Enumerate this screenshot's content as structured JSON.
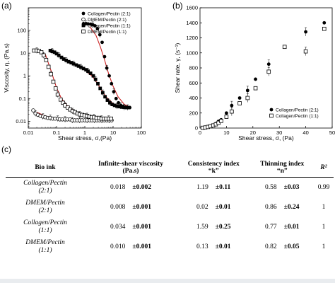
{
  "chart_data": [
    {
      "panel": "(a)",
      "type": "scatter",
      "xlabel": "Shear stress, σ,(Pa)",
      "ylabel": "Viscosity, η, (Pa.s)",
      "x_scale": "log",
      "y_scale": "log",
      "xlim": [
        0.01,
        100
      ],
      "ylim": [
        0.005,
        1000
      ],
      "x_ticks": [
        "0.01",
        "0.1",
        "1",
        "10",
        "100"
      ],
      "y_ticks": [
        "0.01",
        "0.1",
        "1",
        "10",
        "100"
      ],
      "legend_position": "top-right",
      "series": [
        {
          "name": "Collagen/Pectin (2:1)",
          "marker": "filled-circle",
          "x": [
            0.9,
            1.1,
            1.3,
            1.6,
            1.9,
            2.3,
            2.8,
            3.4,
            4.1,
            5.0,
            6.0,
            7.3,
            8.8,
            10.6,
            12.8,
            15.5,
            18.7,
            22.6,
            27.3,
            33.0,
            39.0
          ],
          "y": [
            200,
            200,
            195,
            190,
            180,
            160,
            120,
            65,
            30,
            7,
            2.2,
            1.0,
            0.45,
            0.2,
            0.1,
            0.065,
            0.05,
            0.045,
            0.042,
            0.04,
            0.04
          ]
        },
        {
          "name": "DMEM/Pectin (2:1)",
          "marker": "open-circle",
          "x": [
            0.015,
            0.018,
            0.022,
            0.027,
            0.033,
            0.04,
            0.049,
            0.06,
            0.073,
            0.089,
            0.11,
            0.13,
            0.16,
            0.2,
            0.24,
            0.3,
            0.36,
            0.44,
            0.54,
            0.66,
            0.8,
            1.0,
            1.2,
            1.5,
            1.8,
            2.2,
            2.7,
            3.3,
            4.0,
            4.9,
            6.0,
            7.3,
            8.9
          ],
          "y": [
            0.03,
            0.022,
            0.019,
            0.017,
            0.016,
            0.015,
            0.014,
            0.014,
            0.013,
            0.013,
            0.013,
            0.012,
            0.012,
            0.012,
            0.012,
            0.012,
            0.011,
            0.011,
            0.011,
            0.011,
            0.011,
            0.011,
            0.011,
            0.011,
            0.011,
            0.011,
            0.011,
            0.011,
            0.011,
            0.011,
            0.011,
            0.011,
            0.011
          ]
        },
        {
          "name": "Collagen/Pectin (1:1)",
          "marker": "filled-square",
          "x": [
            0.06,
            0.07,
            0.085,
            0.1,
            0.12,
            0.15,
            0.18,
            0.22,
            0.27,
            0.33,
            0.4,
            0.5,
            0.6,
            0.73,
            0.9,
            1.1,
            1.3,
            1.6,
            2.0,
            2.4,
            2.9,
            3.5,
            4.3,
            5.2,
            6.3,
            7.7,
            9.3,
            11.3,
            13.7,
            16.6,
            20.2,
            24.5,
            29.7,
            36.0
          ],
          "y": [
            13,
            12,
            11,
            9.5,
            8,
            6.5,
            5.5,
            4.8,
            4.2,
            3.8,
            3.4,
            3.0,
            2.7,
            2.4,
            2.1,
            1.85,
            1.6,
            1.3,
            1.0,
            0.7,
            0.45,
            0.28,
            0.18,
            0.12,
            0.085,
            0.065,
            0.055,
            0.05,
            0.046,
            0.044,
            0.042,
            0.041,
            0.04,
            0.04
          ]
        },
        {
          "name": "DMEM/Pectin (1:1)",
          "marker": "open-square",
          "x": [
            0.016,
            0.02,
            0.024,
            0.029,
            0.035,
            0.043,
            0.052,
            0.063,
            0.077,
            0.093,
            0.11,
            0.14,
            0.17,
            0.2,
            0.25,
            0.3,
            0.37,
            0.45,
            0.55,
            0.66,
            0.8,
            0.98,
            1.2,
            1.45,
            1.76,
            2.1,
            2.6,
            3.2,
            3.9,
            4.7,
            5.7,
            7.0,
            8.5
          ],
          "y": [
            13,
            13,
            12.5,
            11,
            8,
            5,
            2.5,
            1.2,
            0.55,
            0.28,
            0.15,
            0.09,
            0.065,
            0.05,
            0.04,
            0.033,
            0.028,
            0.025,
            0.022,
            0.02,
            0.019,
            0.018,
            0.017,
            0.016,
            0.015,
            0.015,
            0.014,
            0.014,
            0.013,
            0.013,
            0.013,
            0.013,
            0.013
          ]
        }
      ],
      "fits": [
        {
          "x": [
            1.5,
            2.5,
            3.5,
            5,
            7,
            10,
            15,
            25,
            40
          ],
          "y": [
            150,
            60,
            20,
            5,
            1.2,
            0.35,
            0.12,
            0.055,
            0.042
          ]
        },
        {
          "x": [
            0.02,
            0.04,
            0.1,
            0.3,
            1,
            3,
            9
          ],
          "y": [
            0.025,
            0.017,
            0.014,
            0.012,
            0.0115,
            0.011,
            0.011
          ]
        },
        {
          "x": [
            0.7,
            1,
            1.5,
            2,
            3,
            4,
            6,
            10,
            20,
            35
          ],
          "y": [
            2.3,
            1.8,
            1.2,
            0.85,
            0.4,
            0.22,
            0.11,
            0.06,
            0.045,
            0.04
          ]
        },
        {
          "x": [
            0.04,
            0.05,
            0.065,
            0.08,
            0.1,
            0.15,
            0.25,
            0.5,
            1,
            3,
            8.5
          ],
          "y": [
            9,
            4,
            1.6,
            0.7,
            0.3,
            0.1,
            0.045,
            0.025,
            0.019,
            0.015,
            0.013
          ]
        }
      ]
    },
    {
      "panel": "(b)",
      "type": "scatter",
      "xlabel": "Shear stress, σ, (Pa)",
      "ylabel": "Shear rate, γ, (s⁻¹)",
      "xlim": [
        0,
        50
      ],
      "ylim": [
        0,
        1600
      ],
      "x_ticks": [
        "0",
        "10",
        "20",
        "30",
        "40",
        "50"
      ],
      "y_ticks": [
        "0",
        "200",
        "400",
        "600",
        "800",
        "1000",
        "1200",
        "1400",
        "1600"
      ],
      "legend_position": "bottom-right",
      "series": [
        {
          "name": "Collagen/Pectin (2:1)",
          "marker": "filled-circle",
          "x": [
            1,
            2,
            3,
            4,
            5,
            6,
            7,
            8,
            10,
            12,
            15,
            18,
            21,
            26,
            32,
            40,
            47
          ],
          "y": [
            5,
            10,
            20,
            30,
            40,
            60,
            90,
            110,
            200,
            300,
            400,
            500,
            650,
            850,
            1080,
            1280,
            1400
          ]
        },
        {
          "name": "Collagen/Pectin (1:1)",
          "marker": "open-square",
          "x": [
            1,
            2,
            3,
            4,
            5,
            6,
            7,
            8,
            10,
            12,
            15,
            18,
            21,
            26,
            32,
            40,
            47
          ],
          "y": [
            3,
            8,
            15,
            25,
            35,
            50,
            70,
            95,
            150,
            220,
            330,
            400,
            530,
            750,
            1080,
            1020,
            1320
          ]
        }
      ]
    }
  ],
  "panel_c_label": "(c)",
  "table": {
    "headers": {
      "bio_ink": "Bio ink",
      "infinite_line1": "Infinite-shear viscosity",
      "infinite_line2": "(Pa.s)",
      "consistency_line1": "Consistency index",
      "consistency_line2": "“k”",
      "thinning_line1": "Thinning index",
      "thinning_line2": "“n”",
      "r2": "R²"
    },
    "rows": [
      {
        "ink_line1": "Collagen/Pectin",
        "ink_line2": "(2:1)",
        "visc": "0.018",
        "visc_err": "±0.002",
        "k": "1.19",
        "k_err": "±0.11",
        "n": "0.58",
        "n_err": "±0.03",
        "r2": "0.99"
      },
      {
        "ink_line1": "DMEM/Pectin",
        "ink_line2": "(2:1)",
        "visc": "0.008",
        "visc_err": "±0.001",
        "k": "0.02",
        "k_err": "±0.01",
        "n": "0.86",
        "n_err": "±0.24",
        "r2": "1"
      },
      {
        "ink_line1": "Collagen/Pectin",
        "ink_line2": "(1:1)",
        "visc": "0.034",
        "visc_err": "±0.001",
        "k": "1.59",
        "k_err": "±0.25",
        "n": "0.77",
        "n_err": "±0.01",
        "r2": "1"
      },
      {
        "ink_line1": "DMEM/Pectin",
        "ink_line2": "(1:1)",
        "visc": "0.010",
        "visc_err": "±0.001",
        "k": "0.13",
        "k_err": "±0.01",
        "n": "0.82",
        "n_err": "±0.05",
        "r2": "1"
      }
    ]
  },
  "colors": {
    "axis": "#000000",
    "fit_line": "#cc2222",
    "strip": "#e9ecef"
  }
}
